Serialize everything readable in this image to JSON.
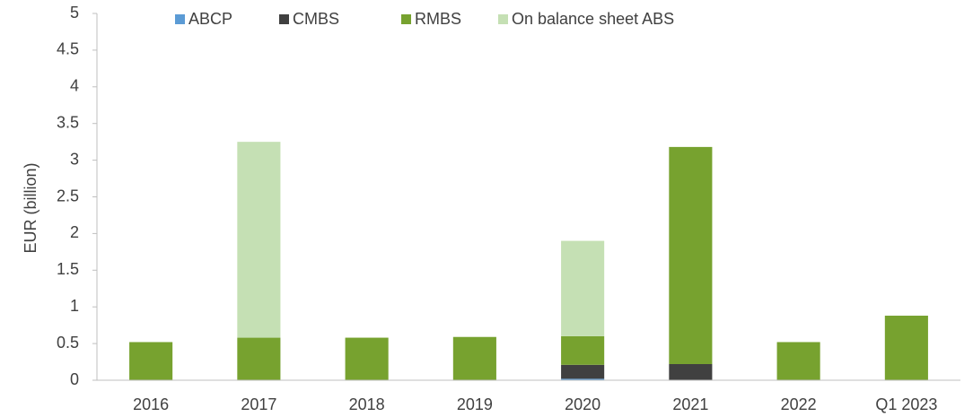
{
  "chart_data": {
    "type": "stacked_bar",
    "y_label": "EUR (billion)",
    "categories": [
      "2016",
      "2017",
      "2018",
      "2019",
      "2020",
      "2021",
      "2022",
      "Q1 2023"
    ],
    "series": [
      {
        "name": "ABCP",
        "color": "#5b9bd5",
        "values": [
          0,
          0,
          0,
          0,
          0.02,
          0,
          0,
          0
        ]
      },
      {
        "name": "CMBS",
        "color": "#404040",
        "values": [
          0,
          0,
          0,
          0,
          0.19,
          0.22,
          0,
          0
        ]
      },
      {
        "name": "RMBS",
        "color": "#77a22f",
        "values": [
          0.52,
          0.58,
          0.58,
          0.59,
          0.39,
          2.96,
          0.52,
          0.88
        ]
      },
      {
        "name": "On balance sheet ABS",
        "color": "#c5e0b4",
        "values": [
          0,
          2.67,
          0,
          0,
          1.3,
          0,
          0,
          0
        ]
      }
    ],
    "ylim": [
      0,
      5
    ],
    "yticks": [
      0,
      0.5,
      1,
      1.5,
      2,
      2.5,
      3,
      3.5,
      4,
      4.5,
      5
    ],
    "grid": false,
    "legend": "top"
  }
}
